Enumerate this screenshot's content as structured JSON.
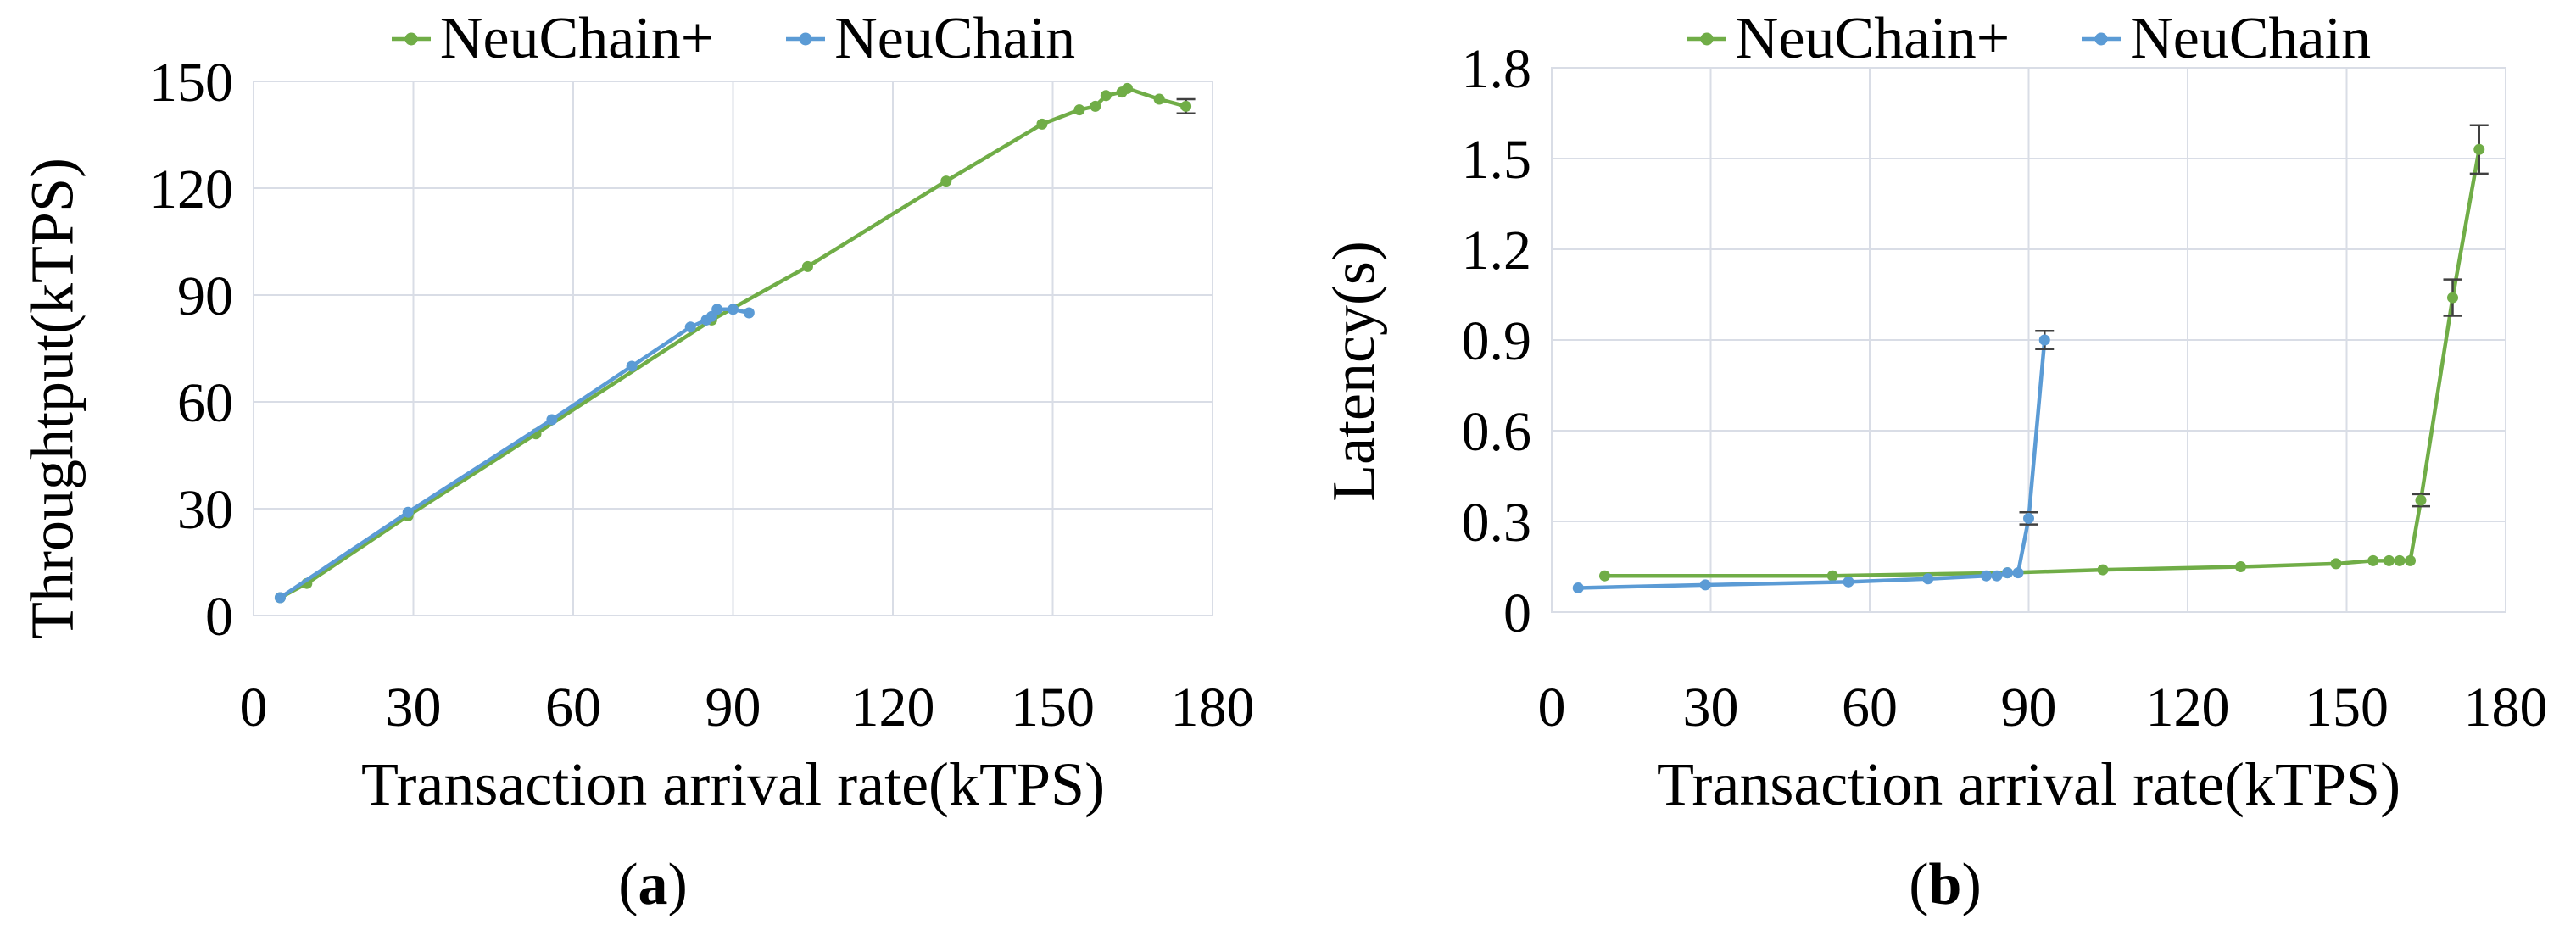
{
  "figure": {
    "background": "#ffffff",
    "text_color": "#000000",
    "gridline_color": "#d9dde6",
    "error_bar_color": "#404040",
    "accent_green": "#70AD47",
    "accent_blue": "#5B9BD5"
  },
  "chart_data": [
    {
      "id": "a",
      "type": "line",
      "title": "",
      "xlabel": "Transaction arrival rate(kTPS)",
      "ylabel": "Throughtput(kTPS)",
      "caption": {
        "open": "(",
        "letter": "a",
        "close": ")"
      },
      "xlim": [
        0,
        180
      ],
      "ylim": [
        0,
        150
      ],
      "xticks": [
        "0",
        "30",
        "60",
        "90",
        "120",
        "150",
        "180"
      ],
      "yticks": [
        "0",
        "30",
        "60",
        "90",
        "120",
        "150"
      ],
      "grid": true,
      "legend_position": "top-center",
      "series": [
        {
          "name": "NeuChain+",
          "color": "#70AD47",
          "marker": "circle",
          "x": [
            5,
            10,
            29,
            53,
            86,
            104,
            130,
            148,
            155,
            158,
            160,
            163,
            164,
            170,
            175
          ],
          "y": [
            5,
            9,
            28,
            51,
            83,
            98,
            122,
            138,
            142,
            143,
            146,
            147,
            148,
            145,
            143
          ],
          "yerr": [
            0,
            0,
            0,
            0,
            0,
            0,
            0,
            0,
            0,
            0,
            0,
            0,
            0,
            0,
            2
          ]
        },
        {
          "name": "NeuChain",
          "color": "#5B9BD5",
          "marker": "circle",
          "x": [
            5,
            29,
            56,
            71,
            82,
            85,
            86,
            87,
            90,
            93
          ],
          "y": [
            5,
            29,
            55,
            70,
            81,
            83,
            84,
            86,
            86,
            85
          ],
          "yerr": [
            0,
            0,
            0,
            0,
            0,
            0,
            0,
            0,
            0,
            0
          ]
        }
      ]
    },
    {
      "id": "b",
      "type": "line",
      "title": "",
      "xlabel": "Transaction arrival rate(kTPS)",
      "ylabel": "Latency(s)",
      "caption": {
        "open": "(",
        "letter": "b",
        "close": ")"
      },
      "xlim": [
        0,
        180
      ],
      "ylim": [
        0,
        1.8
      ],
      "xticks": [
        "0",
        "30",
        "60",
        "90",
        "120",
        "150",
        "180"
      ],
      "yticks": [
        "0",
        "0.3",
        "0.6",
        "0.9",
        "1.2",
        "1.5",
        "1.8"
      ],
      "grid": true,
      "legend_position": "top-center",
      "series": [
        {
          "name": "NeuChain+",
          "color": "#70AD47",
          "marker": "circle",
          "x": [
            10,
            53,
            86,
            104,
            130,
            148,
            155,
            158,
            160,
            162,
            164,
            170,
            175
          ],
          "y": [
            0.12,
            0.12,
            0.13,
            0.14,
            0.15,
            0.16,
            0.17,
            0.17,
            0.17,
            0.17,
            0.37,
            1.04,
            1.53
          ],
          "yerr": [
            0,
            0,
            0,
            0,
            0,
            0,
            0,
            0,
            0,
            0,
            0.02,
            0.06,
            0.08
          ]
        },
        {
          "name": "NeuChain",
          "color": "#5B9BD5",
          "marker": "circle",
          "x": [
            5,
            29,
            56,
            71,
            82,
            84,
            86,
            88,
            90,
            93
          ],
          "y": [
            0.08,
            0.09,
            0.1,
            0.11,
            0.12,
            0.12,
            0.13,
            0.13,
            0.31,
            0.9
          ],
          "yerr": [
            0,
            0,
            0,
            0,
            0,
            0,
            0,
            0,
            0.02,
            0.03
          ]
        }
      ]
    }
  ]
}
